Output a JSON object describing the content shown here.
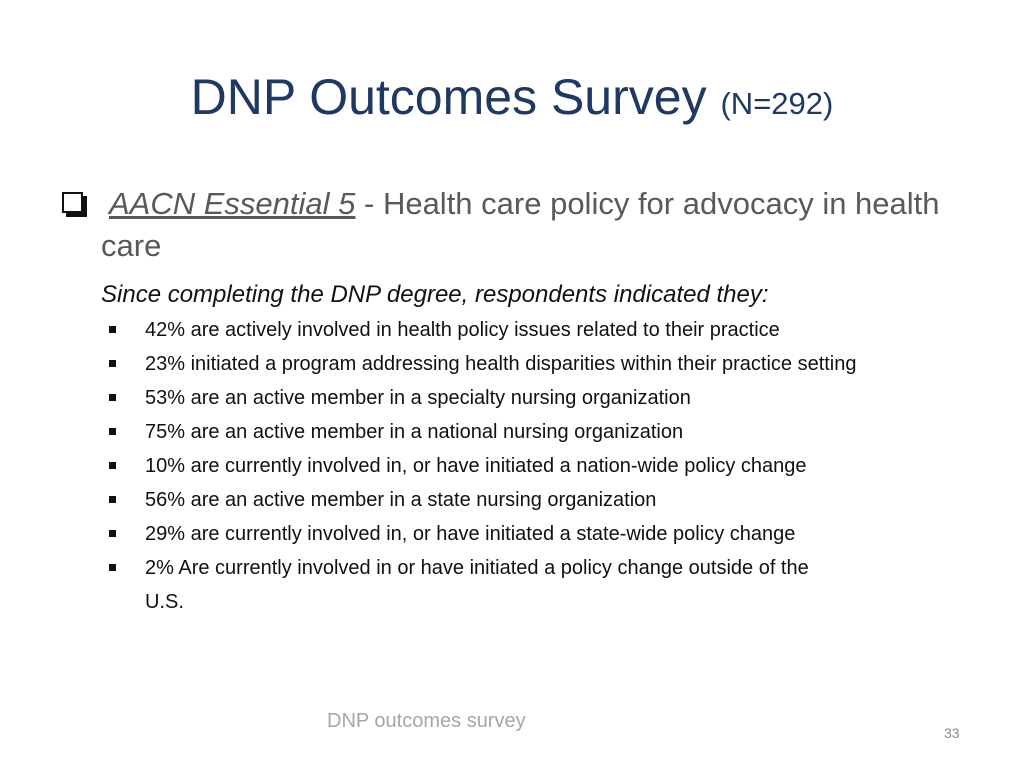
{
  "slide": {
    "title": "DNP Outcomes Survey",
    "title_note": "(N=292)",
    "main_point": {
      "essential": "AACN Essential 5",
      "description": " - Health care policy for advocacy in health care"
    },
    "intro": "Since completing the DNP degree, respondents indicated they:",
    "bullets": [
      "42% are actively involved in health policy issues related to their practice",
      "23% initiated a program addressing health disparities within their practice setting",
      "53% are an active member in a specialty nursing organization",
      "75% are an active member in a national nursing organization",
      "10% are currently involved in, or have initiated a nation-wide policy change",
      "56% are an active member in a state nursing organization",
      "29% are currently involved in, or have initiated a state-wide policy change",
      "2% Are currently involved in or have initiated a policy change outside of the U.S."
    ],
    "footer": "DNP outcomes survey",
    "page_number": "33"
  },
  "colors": {
    "title": "#1f3864",
    "body": "#595959",
    "footer": "#a6a6a6"
  }
}
